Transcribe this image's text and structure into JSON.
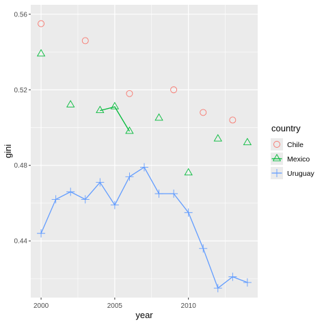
{
  "chart_data": {
    "type": "line",
    "title": "",
    "xlabel": "year",
    "ylabel": "gini",
    "xlim": [
      1999.3,
      2014.7
    ],
    "ylim": [
      0.41,
      0.565
    ],
    "x_ticks": [
      2000,
      2005,
      2010
    ],
    "y_ticks": [
      0.44,
      0.48,
      0.52,
      0.56
    ],
    "x_tick_labels": [
      "2000",
      "2005",
      "2010"
    ],
    "y_tick_labels": [
      "0.44",
      "0.48",
      "0.52",
      "0.56"
    ],
    "grid": true,
    "legend": {
      "title": "country",
      "placement": "right",
      "entries": [
        "Chile",
        "Mexico",
        "Uruguay"
      ]
    },
    "series": [
      {
        "name": "Chile",
        "color": "#F8766D",
        "marker": "circle",
        "points": [
          [
            2000,
            0.555
          ],
          [
            2003,
            0.546
          ],
          [
            2006,
            0.518
          ],
          [
            2009,
            0.52
          ],
          [
            2011,
            0.508
          ],
          [
            2013,
            0.504
          ]
        ],
        "lines": []
      },
      {
        "name": "Mexico",
        "color": "#00BA38",
        "marker": "triangle",
        "points": [
          [
            2000,
            0.539
          ],
          [
            2002,
            0.512
          ],
          [
            2004,
            0.509
          ],
          [
            2005,
            0.511
          ],
          [
            2006,
            0.498
          ],
          [
            2008,
            0.505
          ],
          [
            2010,
            0.476
          ],
          [
            2012,
            0.494
          ],
          [
            2014,
            0.492
          ]
        ],
        "lines": [
          [
            [
              2004,
              0.509
            ],
            [
              2005,
              0.511
            ],
            [
              2006,
              0.498
            ]
          ]
        ]
      },
      {
        "name": "Uruguay",
        "color": "#619CFF",
        "marker": "plus",
        "points": [
          [
            2000,
            0.444
          ],
          [
            2001,
            0.462
          ],
          [
            2002,
            0.466
          ],
          [
            2003,
            0.462
          ],
          [
            2004,
            0.471
          ],
          [
            2005,
            0.459
          ],
          [
            2006,
            0.474
          ],
          [
            2007,
            0.479
          ],
          [
            2008,
            0.465
          ],
          [
            2009,
            0.465
          ],
          [
            2010,
            0.455
          ],
          [
            2011,
            0.436
          ],
          [
            2012,
            0.415
          ],
          [
            2013,
            0.421
          ],
          [
            2014,
            0.418
          ]
        ],
        "lines": [
          [
            [
              2000,
              0.444
            ],
            [
              2001,
              0.462
            ],
            [
              2002,
              0.466
            ],
            [
              2003,
              0.462
            ],
            [
              2004,
              0.471
            ],
            [
              2005,
              0.459
            ],
            [
              2006,
              0.474
            ],
            [
              2007,
              0.479
            ],
            [
              2008,
              0.465
            ],
            [
              2009,
              0.465
            ],
            [
              2010,
              0.455
            ],
            [
              2011,
              0.436
            ],
            [
              2012,
              0.415
            ],
            [
              2013,
              0.421
            ],
            [
              2014,
              0.418
            ]
          ]
        ]
      }
    ]
  }
}
